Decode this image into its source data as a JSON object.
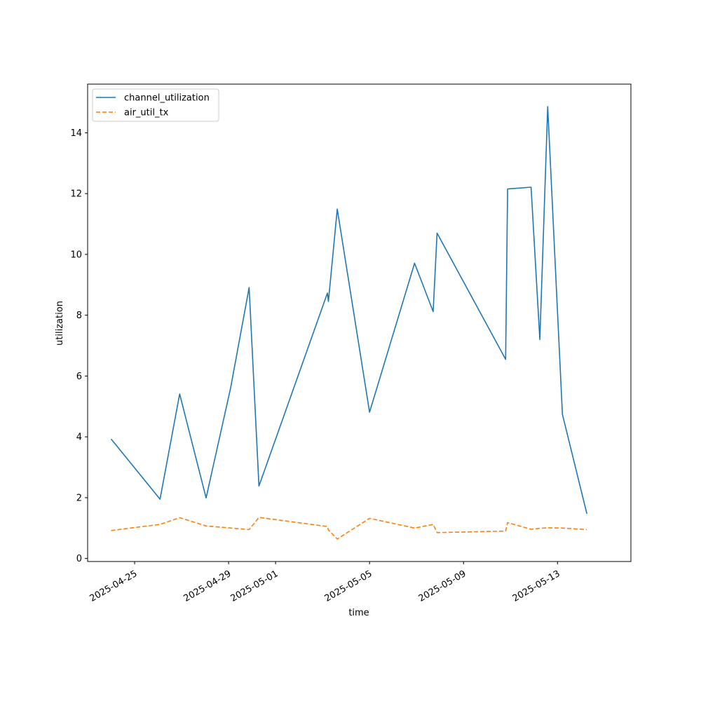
{
  "chart_data": {
    "type": "line",
    "xlabel": "time",
    "ylabel": "utilization",
    "xlim": [
      "2025-04-23T00:00",
      "2025-05-16T03:00"
    ],
    "ylim": [
      -0.1,
      15.6
    ],
    "x_ticks": [
      "2025-04-25",
      "2025-04-29",
      "2025-05-01",
      "2025-05-05",
      "2025-05-09",
      "2025-05-13"
    ],
    "y_ticks": [
      0,
      2,
      4,
      6,
      8,
      10,
      12,
      14
    ],
    "grid": false,
    "legend_position": "top-left",
    "series": [
      {
        "name": "channel_utilization",
        "color": "#1f77b4",
        "style": "solid",
        "points": [
          [
            "2025-04-24T00:00",
            3.93
          ],
          [
            "2025-04-26T02:00",
            1.95
          ],
          [
            "2025-04-26T22:00",
            5.41
          ],
          [
            "2025-04-28T01:00",
            1.99
          ],
          [
            "2025-04-29T02:00",
            5.6
          ],
          [
            "2025-04-29T21:00",
            8.91
          ],
          [
            "2025-04-30T07:00",
            2.38
          ],
          [
            "2025-05-03T05:00",
            8.73
          ],
          [
            "2025-05-03T06:00",
            8.45
          ],
          [
            "2025-05-03T15:00",
            11.49
          ],
          [
            "2025-05-05T00:00",
            4.81
          ],
          [
            "2025-05-06T22:00",
            9.71
          ],
          [
            "2025-05-07T17:00",
            8.12
          ],
          [
            "2025-05-07T21:00",
            10.7
          ],
          [
            "2025-05-10T19:00",
            6.55
          ],
          [
            "2025-05-10T21:00",
            12.15
          ],
          [
            "2025-05-11T21:00",
            12.21
          ],
          [
            "2025-05-12T06:00",
            7.2
          ],
          [
            "2025-05-12T14:00",
            14.86
          ],
          [
            "2025-05-13T05:00",
            4.74
          ],
          [
            "2025-05-14T06:00",
            1.47
          ]
        ]
      },
      {
        "name": "air_util_tx",
        "color": "#ff7f0e",
        "style": "dashed",
        "points": [
          [
            "2025-04-24T00:00",
            0.92
          ],
          [
            "2025-04-26T02:00",
            1.12
          ],
          [
            "2025-04-26T22:00",
            1.34
          ],
          [
            "2025-04-28T01:00",
            1.07
          ],
          [
            "2025-04-29T21:00",
            0.95
          ],
          [
            "2025-04-30T07:00",
            1.35
          ],
          [
            "2025-05-03T05:00",
            1.05
          ],
          [
            "2025-05-03T06:00",
            0.94
          ],
          [
            "2025-05-03T15:00",
            0.64
          ],
          [
            "2025-05-05T00:00",
            1.32
          ],
          [
            "2025-05-06T22:00",
            1.0
          ],
          [
            "2025-05-07T17:00",
            1.12
          ],
          [
            "2025-05-07T21:00",
            0.85
          ],
          [
            "2025-05-10T19:00",
            0.9
          ],
          [
            "2025-05-10T21:00",
            1.18
          ],
          [
            "2025-05-11T21:00",
            0.96
          ],
          [
            "2025-05-12T06:00",
            0.99
          ],
          [
            "2025-05-12T14:00",
            1.01
          ],
          [
            "2025-05-13T05:00",
            1.0
          ],
          [
            "2025-05-14T06:00",
            0.95
          ]
        ]
      }
    ]
  }
}
